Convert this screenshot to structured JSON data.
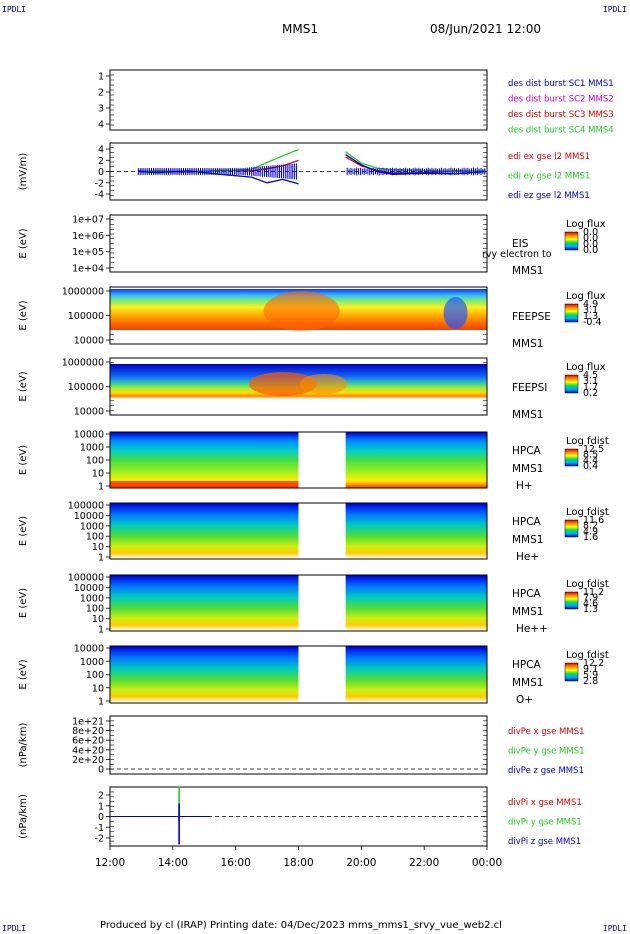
{
  "corner_labels": {
    "tl": "IPDLI",
    "tr": "IPDLI",
    "bl": "IPDLI",
    "br": "IPDLI"
  },
  "header": {
    "spacecraft": "MMS1",
    "datetime": "08/Jun/2021 12:00"
  },
  "footer": {
    "text": "Produced by cl (IRAP)   Printing date: 04/Dec/2023   mms_mms1_srvy_vue_web2.cl"
  },
  "x_axis": {
    "ticks": [
      "12:00",
      "14:00",
      "16:00",
      "18:00",
      "20:00",
      "22:00",
      "00:00"
    ]
  },
  "colors": {
    "blue": "#0000cc",
    "magenta": "#cc00cc",
    "red": "#dd0000",
    "green": "#22cc22"
  },
  "chart_data": [
    {
      "type": "line",
      "panel": "dist",
      "ylim": [
        1,
        4
      ],
      "yticks": [
        "1",
        "2",
        "3",
        "4"
      ],
      "series": [
        {
          "name": "des dist burst SC1 MMS1",
          "color": "#0000cc",
          "values": []
        },
        {
          "name": "des dist burst SC2 MMS2",
          "color": "#cc00cc",
          "values": []
        },
        {
          "name": "des dist burst SC3 MMS3",
          "color": "#dd0000",
          "values": []
        },
        {
          "name": "des dist burst SC4 MMS4",
          "color": "#22cc22",
          "values": []
        }
      ]
    },
    {
      "type": "line",
      "panel": "edi",
      "ylabel": "(mV/m)",
      "ylim": [
        -4,
        4
      ],
      "yticks": [
        "4",
        "2",
        "0",
        "-2",
        "-4"
      ],
      "x_hours": [
        12.9,
        13.5,
        14.5,
        15.5,
        16.5,
        17.0,
        17.5,
        18.0,
        19.5,
        20.0,
        20.5,
        21.0,
        22.0,
        23.0,
        24.0
      ],
      "gap_hours": [
        18.0,
        19.5
      ],
      "series": [
        {
          "name": "edi ex gse l2 MMS1",
          "color": "#dd0000",
          "values": [
            0.1,
            0.0,
            -0.1,
            0.2,
            0.1,
            0.5,
            1.0,
            2.0,
            2.6,
            1.0,
            0.2,
            -0.3,
            -0.2,
            0.1,
            0.0
          ]
        },
        {
          "name": "edi ey gse l2 MMS1",
          "color": "#22cc22",
          "values": [
            0.0,
            0.1,
            0.0,
            0.1,
            0.4,
            1.6,
            2.8,
            3.9,
            3.5,
            1.5,
            0.6,
            0.3,
            0.2,
            0.0,
            0.1
          ]
        },
        {
          "name": "edi ez gse l2 MMS1",
          "color": "#0000cc",
          "values": [
            0.0,
            -0.2,
            0.1,
            -0.5,
            -1.0,
            -2.0,
            -1.4,
            -2.2,
            3.0,
            1.2,
            0.0,
            -0.5,
            -0.3,
            -0.4,
            0.0
          ]
        }
      ]
    },
    {
      "type": "heatmap",
      "panel": "eis",
      "ylabel": "E (eV)",
      "yticks": [
        "1e+07",
        "1e+06",
        "1e+05",
        "1e+04"
      ],
      "labels": [
        "EIS",
        "MMS1"
      ],
      "overlay_text": "rvy electron to",
      "colorbar": {
        "title": "Log flux",
        "ticks": [
          "0.0",
          "0.0",
          "0.0",
          "0.0"
        ]
      }
    },
    {
      "type": "heatmap",
      "panel": "feepse",
      "ylabel": "E (eV)",
      "yticks": [
        "1000000",
        "100000",
        "10000"
      ],
      "labels": [
        "FEEPSE",
        "MMS1"
      ],
      "colorbar": {
        "title": "Log flux",
        "ticks": [
          "4.9",
          "3.1",
          "1.3",
          "-0.4"
        ]
      }
    },
    {
      "type": "heatmap",
      "panel": "feepsi",
      "ylabel": "E (eV)",
      "yticks": [
        "1000000",
        "100000",
        "10000"
      ],
      "labels": [
        "FEEPSI",
        "MMS1"
      ],
      "colorbar": {
        "title": "Log flux",
        "ticks": [
          "4.5",
          "3.1",
          "1.7",
          "0.2"
        ]
      }
    },
    {
      "type": "heatmap",
      "panel": "hpca_h",
      "ylabel": "E (eV)",
      "yticks": [
        "10000",
        "1000",
        "100",
        "10",
        "1"
      ],
      "labels": [
        "HPCA",
        "MMS1",
        "H+"
      ],
      "gap_hours": [
        18.0,
        19.5
      ],
      "colorbar": {
        "title": "Log fdist",
        "ticks": [
          "12.5",
          "8.5",
          "4.4",
          "0.4"
        ]
      }
    },
    {
      "type": "heatmap",
      "panel": "hpca_he",
      "ylabel": "E (eV)",
      "yticks": [
        "100000",
        "10000",
        "1000",
        "100",
        "10",
        "1"
      ],
      "labels": [
        "HPCA",
        "MMS1",
        "He+"
      ],
      "gap_hours": [
        18.0,
        19.5
      ],
      "colorbar": {
        "title": "Log fdist",
        "ticks": [
          "11.6",
          "8.2",
          "4.9",
          "1.6"
        ]
      }
    },
    {
      "type": "heatmap",
      "panel": "hpca_hepp",
      "ylabel": "E (eV)",
      "yticks": [
        "100000",
        "10000",
        "1000",
        "100",
        "10",
        "1"
      ],
      "labels": [
        "HPCA",
        "MMS1",
        "He++"
      ],
      "gap_hours": [
        18.0,
        19.5
      ],
      "colorbar": {
        "title": "Log fdist",
        "ticks": [
          "11.2",
          "7.9",
          "4.6",
          "1.3"
        ]
      }
    },
    {
      "type": "heatmap",
      "panel": "hpca_o",
      "ylabel": "E (eV)",
      "yticks": [
        "10000",
        "1000",
        "100",
        "10",
        "1"
      ],
      "labels": [
        "HPCA",
        "MMS1",
        "O+"
      ],
      "gap_hours": [
        18.0,
        19.5
      ],
      "colorbar": {
        "title": "Log fdist",
        "ticks": [
          "12.2",
          "9.1",
          "5.9",
          "2.8"
        ]
      }
    },
    {
      "type": "line",
      "panel": "divpe",
      "ylabel": "(nPa/km)",
      "yticks": [
        "1e+21",
        "8e+20",
        "6e+20",
        "4e+20",
        "2e+20",
        "0"
      ],
      "series": [
        {
          "name": "divPe x gse MMS1",
          "color": "#dd0000",
          "values": []
        },
        {
          "name": "divPe y gse MMS1",
          "color": "#22cc22",
          "values": []
        },
        {
          "name": "divPe z gse MMS1",
          "color": "#0000cc",
          "values": []
        }
      ]
    },
    {
      "type": "line",
      "panel": "divpi",
      "ylabel": "(nPa/km)",
      "ylim": [
        -3,
        3
      ],
      "yticks": [
        "2",
        "1",
        "0",
        "-1",
        "-2"
      ],
      "spike_hour": 14.2,
      "series": [
        {
          "name": "divPi x gse MMS1",
          "color": "#dd0000",
          "values": [
            0,
            0,
            0.3,
            -0.3,
            0,
            0
          ]
        },
        {
          "name": "divPi y gse MMS1",
          "color": "#22cc22",
          "values": [
            0,
            0,
            2.8,
            -0.5,
            0,
            0
          ]
        },
        {
          "name": "divPi z gse MMS1",
          "color": "#0000cc",
          "values": [
            0,
            0,
            1.2,
            -2.6,
            0,
            0
          ]
        }
      ]
    }
  ]
}
